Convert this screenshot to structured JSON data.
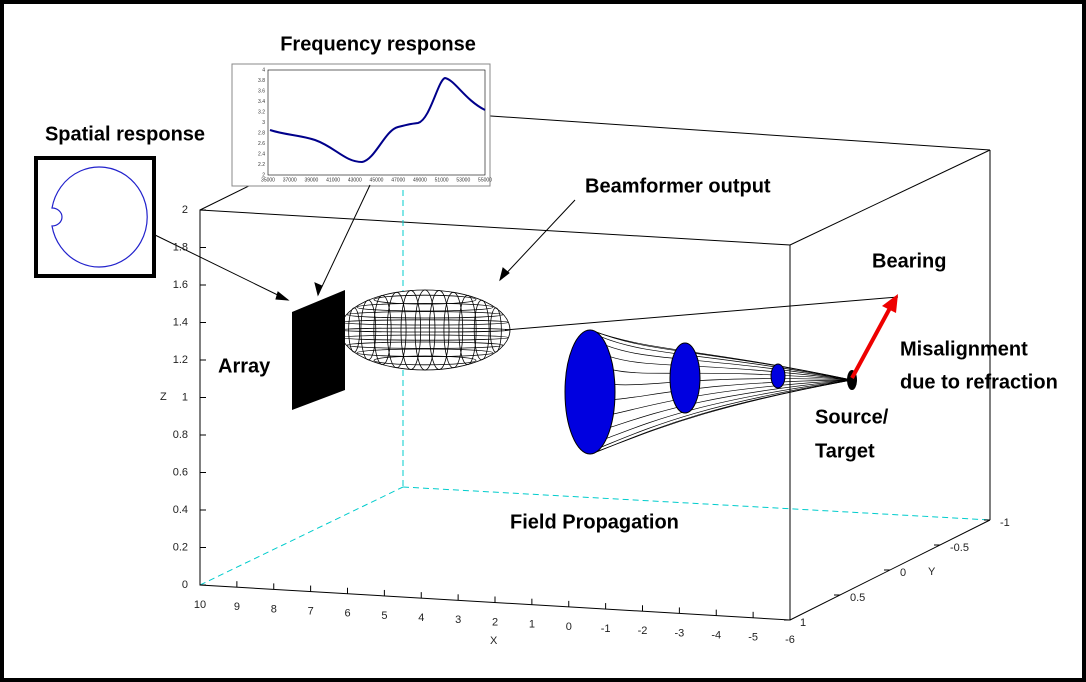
{
  "labels": {
    "frequency_response": "Frequency response",
    "spatial_response": "Spatial response",
    "beamformer_output": "Beamformer output",
    "bearing": "Bearing",
    "array": "Array",
    "misalignment_1": "Misalignment",
    "misalignment_2": "due to refraction",
    "source_1": "Source/",
    "source_2": "Target",
    "field_propagation": "Field Propagation"
  },
  "axes": {
    "z_label": "Z",
    "x_label": "X",
    "y_label": "Y",
    "z_ticks": [
      0,
      0.2,
      0.4,
      0.6,
      0.8,
      1,
      1.2,
      1.4,
      1.6,
      1.8,
      2
    ],
    "x_ticks": [
      10,
      9,
      8,
      7,
      6,
      5,
      4,
      3,
      2,
      1,
      0,
      -1,
      -2,
      -3,
      -4,
      -5,
      -6
    ],
    "y_ticks": [
      1,
      0.5,
      0,
      -0.5,
      -1
    ]
  },
  "inset": {
    "x_ticks": [
      35000,
      37000,
      39000,
      41000,
      43000,
      45000,
      47000,
      49000,
      51000,
      53000,
      55000
    ],
    "y_ticks": [
      2,
      2.2,
      2.4,
      2.6,
      2.8,
      3,
      3.2,
      3.4,
      3.6,
      3.8,
      4
    ]
  }
}
